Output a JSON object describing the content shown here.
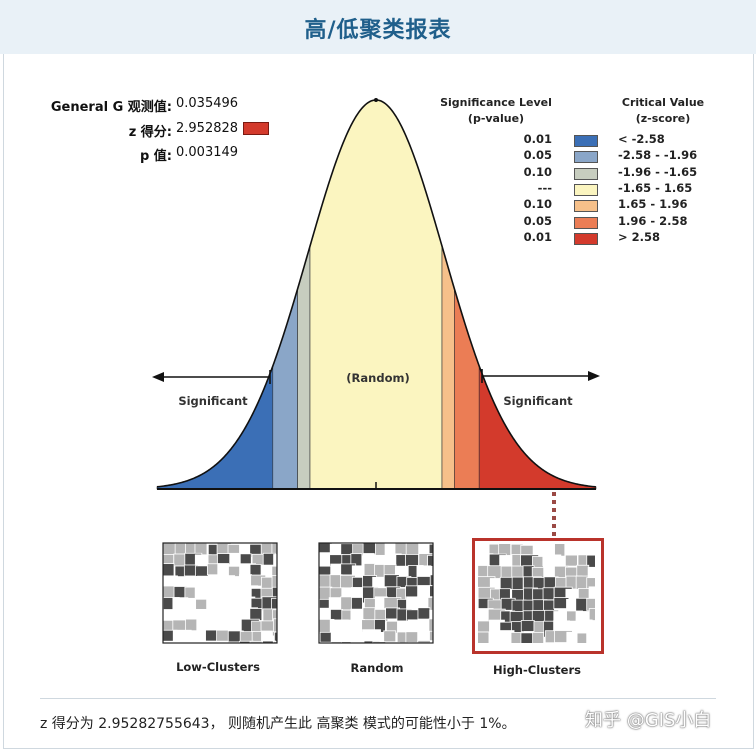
{
  "title": "高/低聚类报表",
  "stats": {
    "general_g_label": "General G 观测值:",
    "general_g_value": "0.035496",
    "z_label": "z 得分:",
    "z_value": "2.952828",
    "z_swatch_color": "#d33a2c",
    "p_label": "p 值:",
    "p_value": "0.003149"
  },
  "legend": {
    "sig_header_1": "Significance Level",
    "sig_header_2": "(p-value)",
    "crit_header_1": "Critical Value",
    "crit_header_2": "(z-score)",
    "rows": [
      {
        "p": "0.01",
        "z": "< -2.58",
        "color": "#3b6fb6"
      },
      {
        "p": "0.05",
        "z": "-2.58 - -1.96",
        "color": "#8aa6c8"
      },
      {
        "p": "0.10",
        "z": "-1.96 - -1.65",
        "color": "#c7cdbf"
      },
      {
        "p": "---",
        "z": "-1.65 - 1.65",
        "color": "#fbf5c0"
      },
      {
        "p": "0.10",
        "z": "1.65 - 1.96",
        "color": "#f6c08a"
      },
      {
        "p": "0.05",
        "z": "1.96 - 2.58",
        "color": "#eb7d55"
      },
      {
        "p": "0.01",
        "z": "> 2.58",
        "color": "#d33a2c"
      }
    ]
  },
  "diagram": {
    "random_label": "(Random)",
    "significant_left": "Significant",
    "significant_right": "Significant"
  },
  "maps": {
    "low_caption": "Low-Clusters",
    "random_caption": "Random",
    "high_caption": "High-Clusters"
  },
  "footer": {
    "text": "z 得分为 2.95282755643， 则随机产生此 高聚类 模式的可能性小于 1%。"
  },
  "watermark": "知乎 @GIS小白"
}
